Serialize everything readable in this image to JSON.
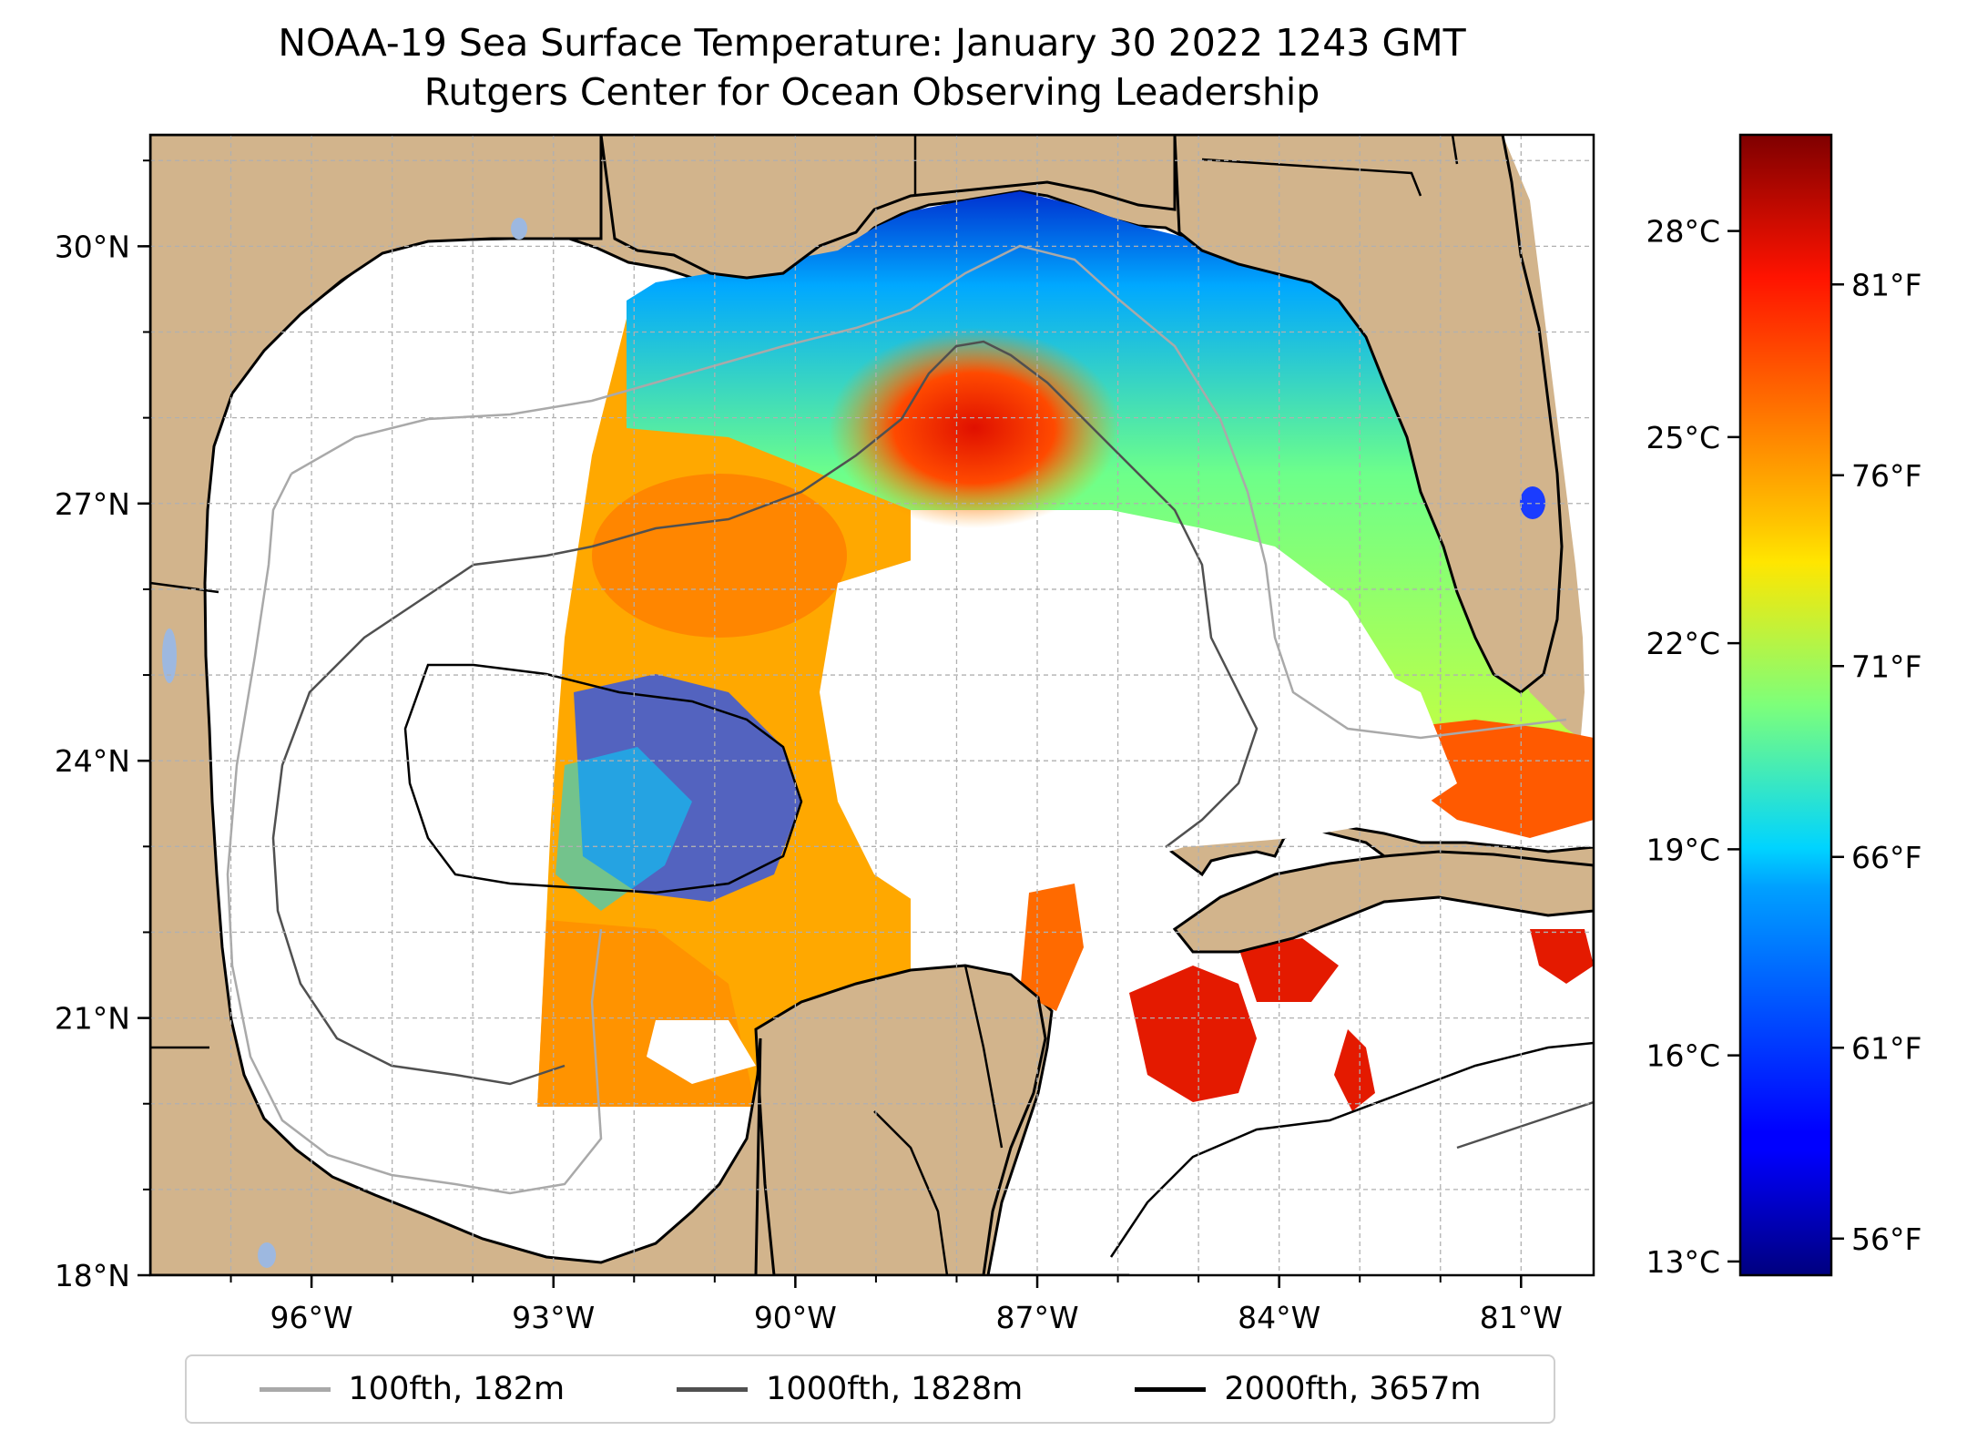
{
  "title": {
    "line1": "NOAA-19 Sea Surface Temperature: January 30 2022 1243 GMT",
    "line2": "Rutgers Center for Ocean Observing Leadership"
  },
  "map": {
    "lon_range": [
      -98,
      -80.1
    ],
    "lat_range": [
      18,
      31.3
    ],
    "lon_ticks": [
      -96,
      -93,
      -90,
      -87,
      -84,
      -81
    ],
    "lon_tick_labels": [
      "96°W",
      "93°W",
      "90°W",
      "87°W",
      "84°W",
      "81°W"
    ],
    "lat_ticks": [
      18,
      21,
      24,
      27,
      30
    ],
    "lat_tick_labels": [
      "18°N",
      "21°N",
      "24°N",
      "27°N",
      "30°N"
    ],
    "gridlines": true,
    "colors": {
      "land": "#d2b48c",
      "water_no_data": "#ffffff",
      "inland_water": "#9db8e0",
      "coastline": "#000000",
      "grid": "#b0b0b0"
    }
  },
  "colorbar": {
    "colormap": "jet",
    "celsius_range": [
      12.8,
      29.4
    ],
    "celsius_ticks": [
      13,
      16,
      19,
      22,
      25,
      28
    ],
    "celsius_labels": [
      "13°C",
      "16°C",
      "19°C",
      "22°C",
      "25°C",
      "28°C"
    ],
    "fahrenheit_ticks": [
      56,
      61,
      66,
      71,
      76,
      81
    ],
    "fahrenheit_labels": [
      "56°F",
      "61°F",
      "66°F",
      "71°F",
      "76°F",
      "81°F"
    ]
  },
  "legend": {
    "entries": [
      {
        "label": "100fth, 182m",
        "color": "#a9a9a9"
      },
      {
        "label": "1000fth, 1828m",
        "color": "#505050"
      },
      {
        "label": "2000fth, 3657m",
        "color": "#000000"
      }
    ]
  }
}
